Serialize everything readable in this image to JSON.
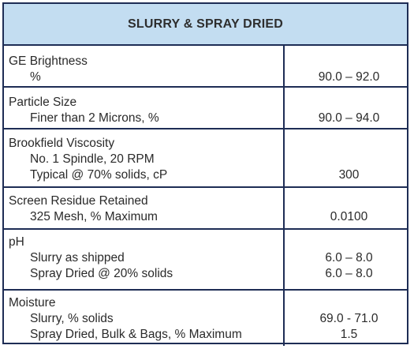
{
  "table": {
    "title": "SLURRY & SPRAY DRIED",
    "rows": [
      {
        "label": "GE Brightness",
        "items": [
          {
            "text": "%",
            "value": "90.0 – 92.0"
          }
        ]
      },
      {
        "label": "Particle Size",
        "items": [
          {
            "text": "Finer than 2 Microns, %",
            "value": "90.0 – 94.0"
          }
        ]
      },
      {
        "label": "Brookfield Viscosity",
        "items": [
          {
            "text": "No. 1 Spindle, 20 RPM",
            "value": ""
          },
          {
            "text": "Typical @ 70% solids, cP",
            "value": "300"
          }
        ]
      },
      {
        "label": "Screen Residue Retained",
        "items": [
          {
            "text": "325 Mesh, % Maximum",
            "value": "0.0100"
          }
        ]
      },
      {
        "label": "pH",
        "items": [
          {
            "text": "Slurry as shipped",
            "value": "6.0 – 8.0"
          },
          {
            "text": "Spray Dried @ 20% solids",
            "value": "6.0 – 8.0"
          }
        ]
      },
      {
        "label": "Moisture",
        "items": [
          {
            "text": "Slurry, % solids",
            "value": "69.0 - 71.0"
          },
          {
            "text": "Spray Dried, Bulk & Bags, % Maximum",
            "value": "1.5"
          }
        ]
      }
    ]
  }
}
